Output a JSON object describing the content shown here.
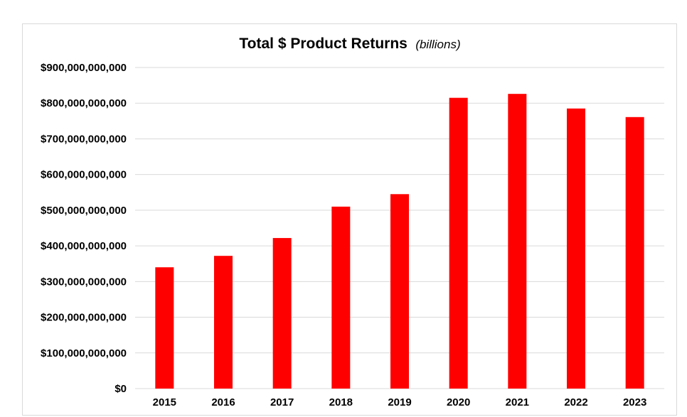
{
  "chart_data": {
    "type": "bar",
    "title": "Total $ Product Returns",
    "subtitle": "(billions)",
    "categories": [
      "2015",
      "2016",
      "2017",
      "2018",
      "2019",
      "2020",
      "2021",
      "2022",
      "2023"
    ],
    "values": [
      340000000000,
      372000000000,
      422000000000,
      510000000000,
      545000000000,
      815000000000,
      826000000000,
      785000000000,
      761000000000
    ],
    "ylim": [
      0,
      900000000000
    ],
    "yticks": [
      0,
      100000000000,
      200000000000,
      300000000000,
      400000000000,
      500000000000,
      600000000000,
      700000000000,
      800000000000,
      900000000000
    ],
    "ytick_labels": [
      "$0",
      "$100,000,000,000",
      "$200,000,000,000",
      "$300,000,000,000",
      "$400,000,000,000",
      "$500,000,000,000",
      "$600,000,000,000",
      "$700,000,000,000",
      "$800,000,000,000",
      "$900,000,000,000"
    ],
    "xlabel": "",
    "ylabel": "",
    "grid": true,
    "legend": "none",
    "bar_color": "#ff0000",
    "grid_color": "#d9d9d9"
  }
}
